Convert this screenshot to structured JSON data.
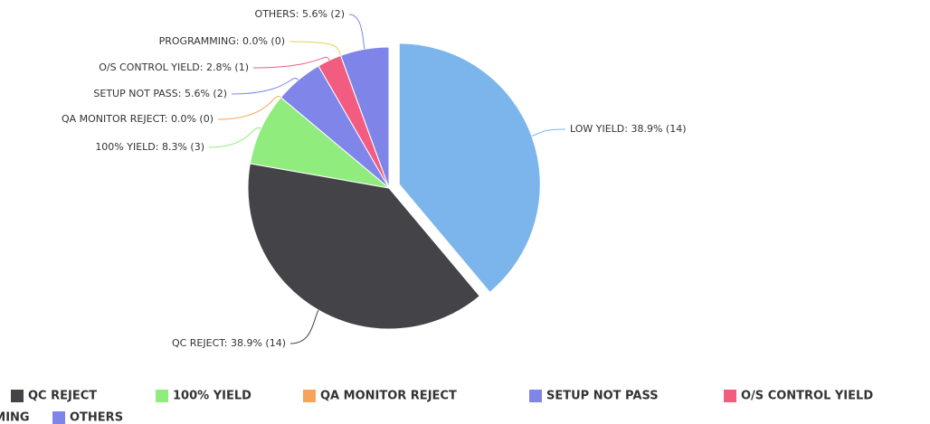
{
  "chart_data": {
    "type": "pie",
    "categories": [
      "LOW YIELD",
      "QC REJECT",
      "100% YIELD",
      "QA MONITOR REJECT",
      "SETUP NOT PASS",
      "O/S CONTROL YIELD",
      "PROGRAMMING",
      "OTHERS"
    ],
    "values": [
      14,
      14,
      3,
      0,
      2,
      1,
      0,
      2
    ],
    "value_labels": [
      "LOW YIELD: 38.9% (14)",
      "QC REJECT: 38.9% (14)",
      "100% YIELD: 8.3% (3)",
      "QA MONITOR REJECT: 0.0% (0)",
      "SETUP NOT PASS: 5.6% (2)",
      "O/S CONTROL YIELD: 2.8% (1)",
      "PROGRAMMING: 0.0% (0)",
      "OTHERS: 5.6% (2)"
    ],
    "colors": [
      "#7cb5ec",
      "#434348",
      "#90ed7d",
      "#f7a35c",
      "#8085e9",
      "#f15c80",
      "#e4d354",
      "#7f84e8"
    ],
    "legend": "bottom"
  }
}
